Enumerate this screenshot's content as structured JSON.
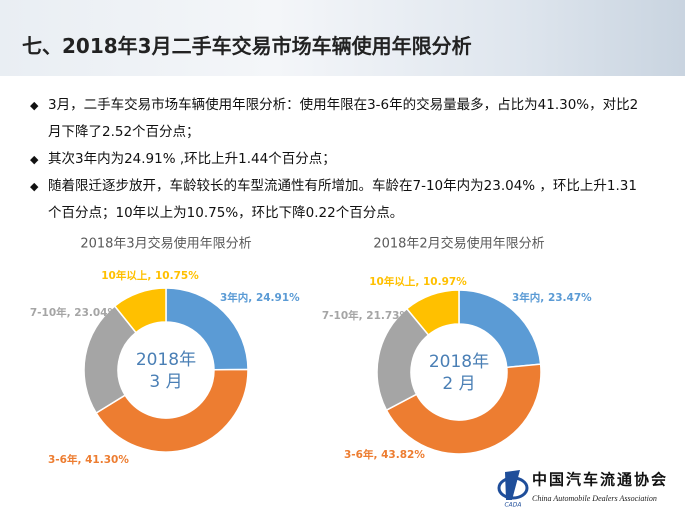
{
  "slide": {
    "title": "七、2018年3月二手车交易市场车辆使用年限分析",
    "bullets": [
      "3月，二手车交易市场车辆使用年限分析：使用年限在3-6年的交易量最多，占比为41.30%，对比2月下降了2.52个百分点；",
      "其次3年内为24.91% ,环比上升1.44个百分点；",
      "随着限迁逐步放开，车龄较长的车型流通性有所增加。车龄在7-10年内为23.04% ，环比上升1.31个百分点；10年以上为10.75%，环比下降0.22个百分点。"
    ]
  },
  "logo": {
    "name": "中国汽车流通协会",
    "english": "China Automobile Dealers Association",
    "abbr": "CADA"
  },
  "chart_data": [
    {
      "type": "donut",
      "title": "2018年3月交易使用年限分析",
      "center_label": [
        "2018年",
        "3 月"
      ],
      "values": [
        24.91,
        41.3,
        23.04,
        10.75
      ],
      "value_labels": [
        "3年内, 24.91%",
        "3-6年, 41.30%",
        "7-10年, 23.04%",
        "10年以上, 10.75%"
      ],
      "colors": [
        "#5b9bd5",
        "#ed7d31",
        "#a5a5a5",
        "#ffc000"
      ]
    },
    {
      "type": "donut",
      "title": "2018年2月交易使用年限分析",
      "center_label": [
        "2018年",
        "2 月"
      ],
      "values": [
        23.47,
        43.82,
        21.73,
        10.97
      ],
      "value_labels": [
        "3年内, 23.47%",
        "3-6年, 43.82%",
        "7-10年, 21.73%",
        "10年以上, 10.97%"
      ],
      "colors": [
        "#5b9bd5",
        "#ed7d31",
        "#a5a5a5",
        "#ffc000"
      ]
    }
  ]
}
